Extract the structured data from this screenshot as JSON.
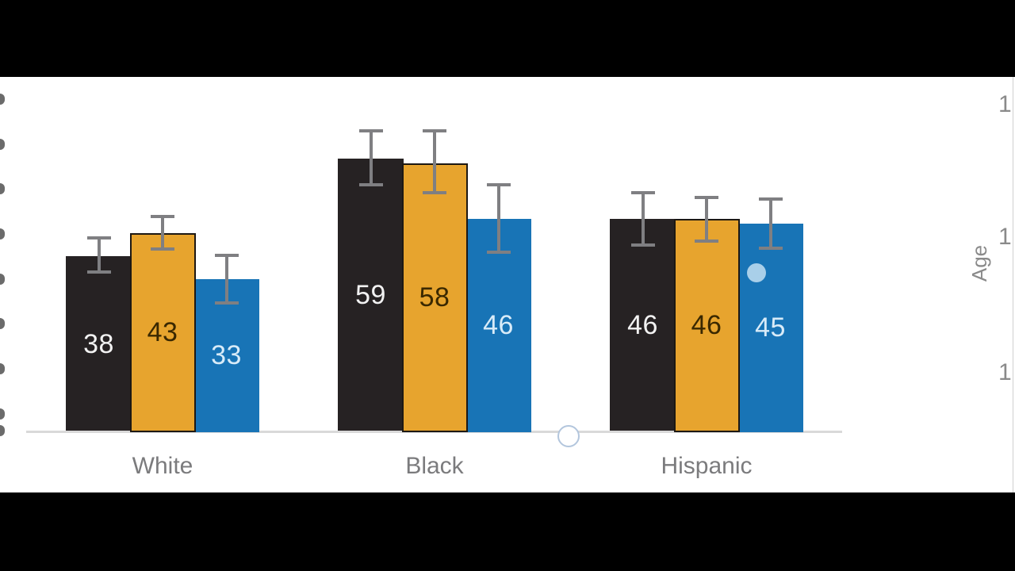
{
  "chart_data": {
    "type": "bar",
    "title": "",
    "categories": [
      "White",
      "Black",
      "Hispanic"
    ],
    "series": [
      {
        "name": "black-series",
        "color": "#262223",
        "label_color": "#f2f2f2",
        "border_color": null,
        "values": [
          38,
          59,
          46
        ],
        "error_plus": [
          4.3,
          6.4,
          6.1
        ],
        "error_minus": [
          3.8,
          5.9,
          5.9
        ]
      },
      {
        "name": "orange-series",
        "color": "#e7a42e",
        "label_color": "#3a2800",
        "border_color": "#1d1813",
        "values": [
          43,
          58,
          46
        ],
        "error_plus": [
          3.9,
          7.4,
          5.0
        ],
        "error_minus": [
          3.8,
          6.6,
          5.1
        ]
      },
      {
        "name": "blue-series",
        "color": "#1874b6",
        "label_color": "#d8ebf8",
        "border_color": null,
        "values": [
          33,
          46,
          45
        ],
        "error_plus": [
          5.5,
          7.8,
          5.7
        ],
        "error_minus": [
          5.4,
          7.5,
          5.6
        ]
      }
    ],
    "value_labels_shown": true,
    "error_bars_shown": true,
    "error_bar_color": "#7f7f82",
    "axis_line_color": "#d9d9d9",
    "category_label_color": "#7b7b7d",
    "xlabel": "",
    "ylabel": "",
    "ylim": [
      0,
      77
    ],
    "legend": "none",
    "grid": false
  },
  "right_edge": {
    "axis_label": "Age",
    "ticks": [
      "1",
      "1",
      "1"
    ],
    "color": "#8a8a8a"
  },
  "left_edge": {
    "description": "clipped y-axis tick label fragments",
    "fragment_count": 9
  },
  "annotations": {
    "pointer_dot_color": "#a9cfe9",
    "ring_border_color": "#b3c6dd"
  }
}
